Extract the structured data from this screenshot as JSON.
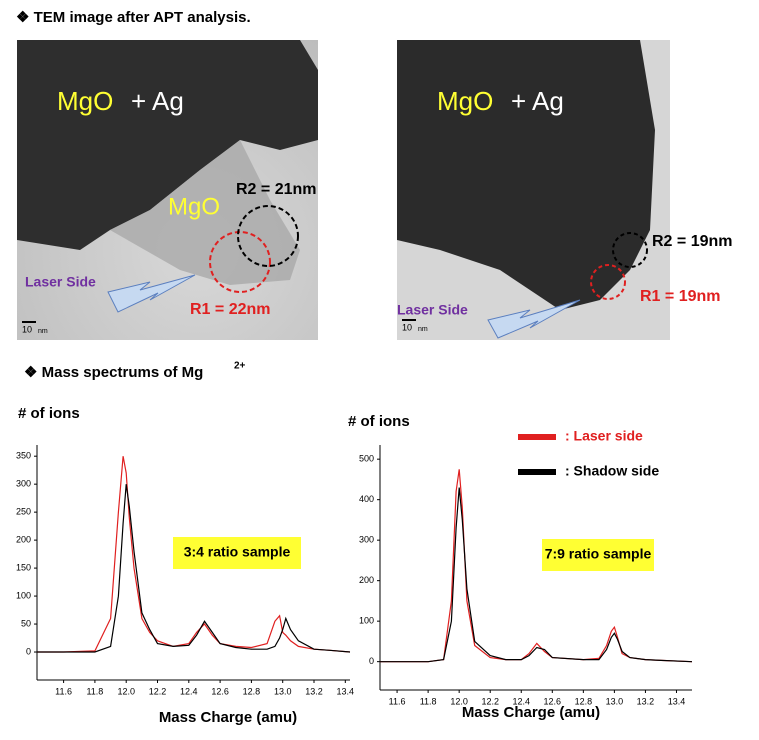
{
  "header": {
    "title": "❖ TEM image after APT analysis."
  },
  "tem": {
    "left": {
      "label_a": "MgO",
      "label_b": "+ Ag",
      "label_c": "MgO",
      "r2": "R2 = 21nm",
      "r1": "R1 = 22nm",
      "laser": "Laser Side",
      "scale": "10",
      "scale_unit": "nm"
    },
    "right": {
      "label_a": "MgO",
      "label_b": "+ Ag",
      "r2": "R2 = 19nm",
      "r1": "R1 = 19nm",
      "laser": "Laser Side",
      "scale": "10",
      "scale_unit": "nm"
    }
  },
  "section": {
    "text": "❖ Mass spectrums of Mg",
    "sup": "2+"
  },
  "chart_data": [
    {
      "type": "line",
      "y_label": "# of ions",
      "x_label": "Mass Charge (amu)",
      "annotation": "3:4 ratio sample",
      "x": [
        11.43,
        11.6,
        11.8,
        11.9,
        11.95,
        11.98,
        12.0,
        12.02,
        12.05,
        12.1,
        12.15,
        12.2,
        12.3,
        12.4,
        12.45,
        12.5,
        12.55,
        12.6,
        12.7,
        12.8,
        12.9,
        12.95,
        12.98,
        13.0,
        13.02,
        13.05,
        13.1,
        13.2,
        13.3,
        13.43
      ],
      "series": [
        {
          "color": "#e02020",
          "values": [
            0,
            0,
            2,
            60,
            250,
            350,
            320,
            240,
            150,
            60,
            35,
            20,
            10,
            15,
            35,
            50,
            30,
            15,
            10,
            8,
            15,
            55,
            65,
            35,
            30,
            20,
            10,
            5,
            3,
            0
          ]
        },
        {
          "color": "#000000",
          "values": [
            0,
            0,
            0,
            10,
            100,
            230,
            300,
            260,
            180,
            70,
            40,
            15,
            10,
            12,
            30,
            55,
            35,
            15,
            8,
            5,
            5,
            10,
            25,
            40,
            60,
            40,
            20,
            5,
            3,
            0
          ]
        }
      ],
      "xlim": [
        11.43,
        13.43
      ],
      "ylim": [
        -50,
        370
      ],
      "xticks": [
        11.6,
        11.8,
        {
          "value": 12,
          "label": "12.0"
        },
        12.2,
        12.4,
        12.6,
        12.8,
        {
          "value": 13,
          "label": "13.0"
        },
        13.2,
        13.4
      ],
      "yticks": [
        0,
        50,
        100,
        150,
        200,
        250,
        300,
        350
      ]
    },
    {
      "type": "line",
      "y_label": "# of ions",
      "x_label": "Mass Charge (amu)",
      "annotation": "7:9 ratio sample",
      "legend": "upper right",
      "x": [
        11.49,
        11.6,
        11.8,
        11.9,
        11.95,
        11.98,
        12.0,
        12.02,
        12.05,
        12.1,
        12.2,
        12.3,
        12.4,
        12.45,
        12.5,
        12.55,
        12.6,
        12.8,
        12.9,
        12.95,
        12.98,
        13.0,
        13.02,
        13.05,
        13.1,
        13.2,
        13.3,
        13.5
      ],
      "series": [
        {
          "name": ": Laser side",
          "color": "#e02020",
          "values": [
            0,
            0,
            0,
            5,
            150,
            420,
            475,
            380,
            150,
            40,
            10,
            5,
            5,
            20,
            45,
            25,
            10,
            5,
            8,
            40,
            75,
            85,
            60,
            20,
            10,
            5,
            3,
            0
          ]
        },
        {
          "name": ": Shadow side",
          "color": "#000000",
          "values": [
            0,
            0,
            0,
            5,
            100,
            330,
            430,
            350,
            180,
            50,
            15,
            5,
            5,
            15,
            35,
            30,
            10,
            5,
            5,
            30,
            60,
            70,
            55,
            25,
            10,
            5,
            3,
            0
          ]
        }
      ],
      "xlim": [
        11.49,
        13.5
      ],
      "ylim": [
        -70,
        535
      ],
      "xticks": [
        11.6,
        11.8,
        {
          "value": 12,
          "label": "12.0"
        },
        12.2,
        12.4,
        12.6,
        12.8,
        {
          "value": 13,
          "label": "13.0"
        },
        13.2,
        13.4
      ],
      "yticks": [
        0,
        100,
        200,
        300,
        400,
        500
      ]
    }
  ]
}
